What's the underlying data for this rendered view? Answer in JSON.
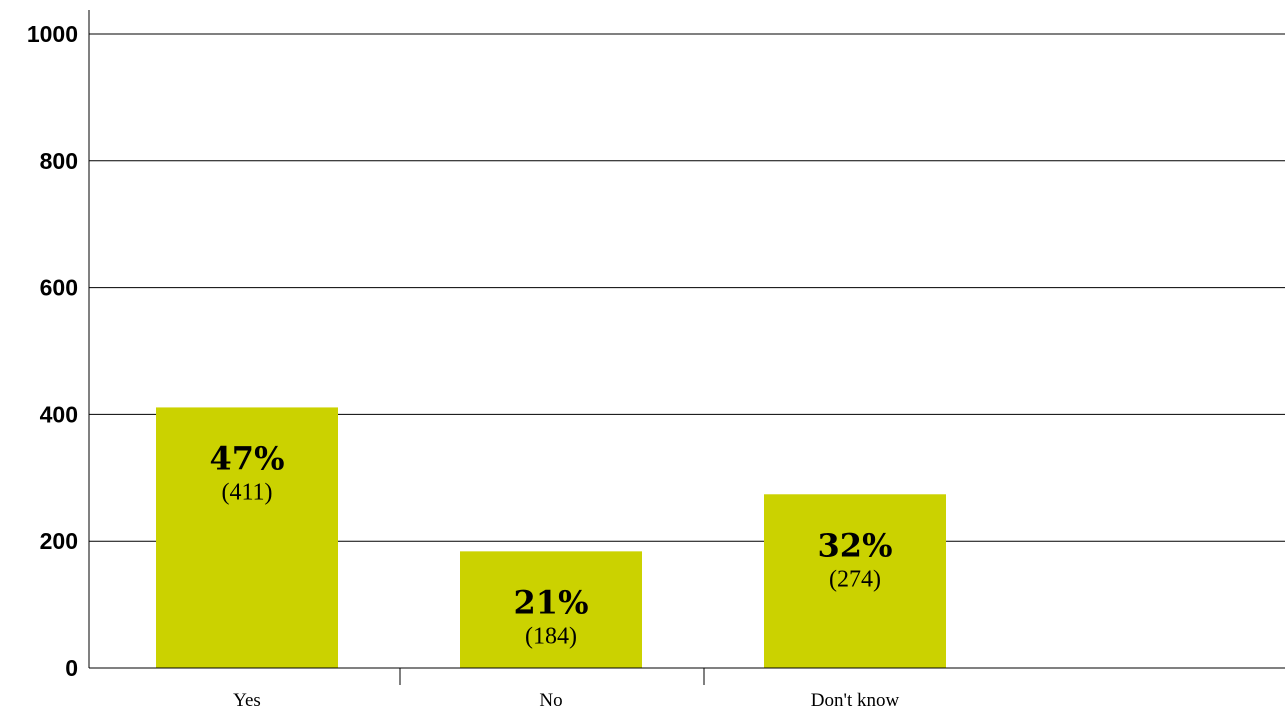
{
  "chart_data": {
    "type": "bar",
    "categories": [
      "Yes",
      "No",
      "Don't know"
    ],
    "values": [
      411,
      184,
      274
    ],
    "percent_labels": [
      "47%",
      "21%",
      "32%"
    ],
    "count_labels": [
      "(411)",
      "(184)",
      "(274)"
    ],
    "yticks": [
      "0",
      "200",
      "400",
      "600",
      "800",
      "1000"
    ],
    "ylim": [
      0,
      1000
    ],
    "grid": true,
    "title": "",
    "xlabel": "",
    "ylabel": "",
    "bar_color": "#cbd200"
  }
}
